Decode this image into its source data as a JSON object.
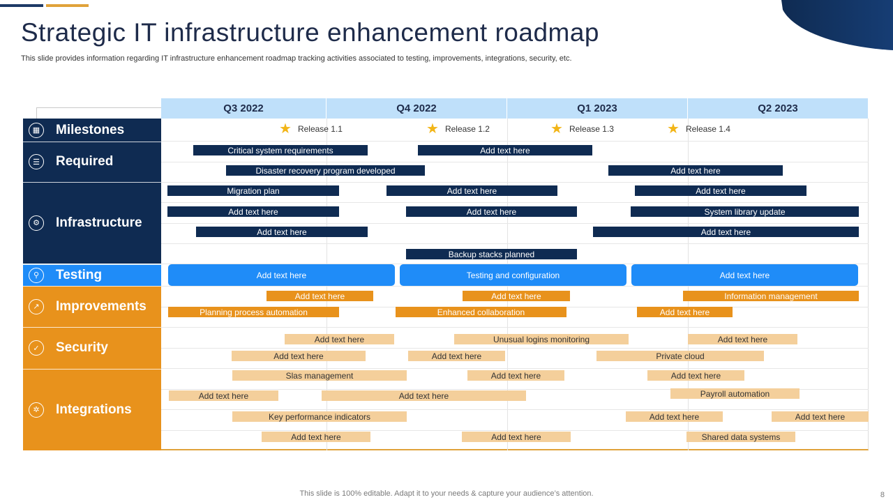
{
  "title": "Strategic IT infrastructure enhancement roadmap",
  "subtitle": "This slide provides information regarding IT infrastructure enhancement roadmap tracking activities associated to testing, improvements, integrations, security, etc.",
  "footer": "This slide is 100% editable. Adapt it to your needs & capture your audience’s attention.",
  "page_number": "8",
  "colors": {
    "navy": "#0f2b52",
    "blue": "#1f8cf8",
    "orange": "#e8921c",
    "light_orange": "#f4cf9b",
    "header_blue": "#bfe0fa",
    "star": "#f2b517"
  },
  "quarters": [
    "Q3 2022",
    "Q4 2022",
    "Q1 2023",
    "Q2 2023"
  ],
  "categories": [
    {
      "label": "Milestones",
      "icon": "calendar-icon"
    },
    {
      "label": "Required",
      "icon": "clipboard-icon"
    },
    {
      "label": "Infrastructure",
      "icon": "network-icon"
    },
    {
      "label": "Testing",
      "icon": "test-tube-icon"
    },
    {
      "label": "Improvements",
      "icon": "growth-chart-icon"
    },
    {
      "label": "Security",
      "icon": "shield-icon"
    },
    {
      "label": "Integrations",
      "icon": "gears-icon"
    }
  ],
  "milestones": [
    "Release 1.1",
    "Release 1.2",
    "Release 1.3",
    "Release 1.4"
  ],
  "required": {
    "row1": [
      "Critical system requirements",
      "Add text here"
    ],
    "row2": [
      "Disaster recovery program developed",
      "Add text here"
    ]
  },
  "infrastructure": {
    "row1": [
      "Migration plan",
      "Add text here",
      "Add text here"
    ],
    "row2": [
      "Add text here",
      "Add text here",
      "System library update"
    ],
    "row3": [
      "Add text here",
      "Add text here"
    ],
    "row4": [
      "Backup stacks planned"
    ]
  },
  "testing": [
    "Add text here",
    "Testing and configuration",
    "Add text here"
  ],
  "improvements": {
    "row1": [
      "Add text here",
      "Add text here",
      "Information management"
    ],
    "row2": [
      "Planning process automation",
      "Enhanced collaboration",
      "Add text here"
    ]
  },
  "security": {
    "row1": [
      "Add text here",
      "Unusual logins monitoring",
      "Add text here"
    ],
    "row2": [
      "Add text here",
      "Add text here",
      "Private cloud"
    ]
  },
  "integrations": {
    "row1": [
      "Slas management",
      "Add text here",
      "Add text here"
    ],
    "row2": [
      "Add text here",
      "Add text here",
      "Payroll automation"
    ],
    "row3": [
      "Key performance indicators",
      "Add text here",
      "Add text here"
    ],
    "row4": [
      "Add text here",
      "Add text here",
      "Shared data systems"
    ]
  }
}
